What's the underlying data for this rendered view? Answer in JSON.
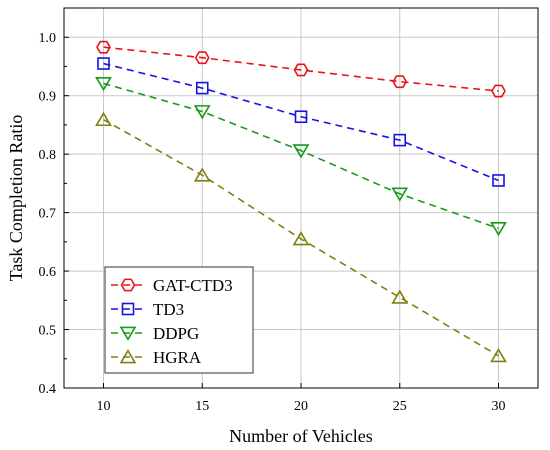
{
  "chart_data": {
    "type": "line",
    "xlabel": "Number of Vehicles",
    "ylabel": "Task Completion Ratio",
    "x": [
      10,
      15,
      20,
      25,
      30
    ],
    "xlim": [
      8,
      32
    ],
    "ylim": [
      0.4,
      1.05
    ],
    "x_ticks": [
      10,
      15,
      20,
      25,
      30
    ],
    "x_tick_labels": [
      "10",
      "15",
      "20",
      "25",
      "30"
    ],
    "y_ticks": [
      0.4,
      0.5,
      0.6,
      0.7,
      0.8,
      0.9,
      1.0
    ],
    "y_tick_labels": [
      "0.4",
      "0.5",
      "0.6",
      "0.7",
      "0.8",
      "0.9",
      "1.0"
    ],
    "grid": true,
    "legend_position": "bottom-left",
    "series": [
      {
        "name": "GAT-CTD3",
        "color": "#e8141b",
        "marker": "hexagon",
        "values": [
          0.983,
          0.965,
          0.944,
          0.924,
          0.908
        ]
      },
      {
        "name": "TD3",
        "color": "#1515e0",
        "marker": "square",
        "values": [
          0.955,
          0.913,
          0.864,
          0.824,
          0.755
        ]
      },
      {
        "name": "DDPG",
        "color": "#1a9a1a",
        "marker": "triangle-down",
        "values": [
          0.921,
          0.873,
          0.806,
          0.732,
          0.673
        ]
      },
      {
        "name": "HGRA",
        "color": "#808010",
        "marker": "triangle-up",
        "values": [
          0.859,
          0.764,
          0.655,
          0.555,
          0.455
        ]
      }
    ]
  }
}
